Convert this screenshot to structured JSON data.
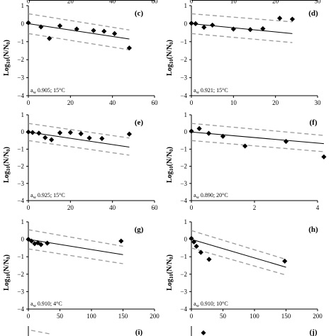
{
  "top_strip_ticks": {
    "left": [
      "0",
      "20",
      "40",
      "60"
    ],
    "right": [
      "0",
      "10",
      "20",
      "30"
    ]
  },
  "y_axis_label": {
    "main": "Log",
    "sub": "10",
    "rest": "(N/N",
    "sub2": "0",
    "close": ")"
  },
  "chart_data": [
    {
      "type": "scatter",
      "panel": "(c)",
      "annotation": "a_w 0.905; 15°C",
      "annotation_parts": {
        "aw": "a",
        "aw_sub": "w",
        "text": " 0.905; 15°C"
      },
      "xlim": [
        0,
        60
      ],
      "ylim": [
        -4,
        1
      ],
      "xticks": [
        0,
        20,
        40,
        60
      ],
      "yticks": [
        1,
        0,
        -1,
        -2,
        -3,
        -4
      ],
      "points": [
        [
          0,
          0.05
        ],
        [
          6,
          -0.18
        ],
        [
          10,
          -0.82
        ],
        [
          15,
          -0.12
        ],
        [
          23,
          -0.3
        ],
        [
          31,
          -0.38
        ],
        [
          36,
          -0.42
        ],
        [
          41,
          -0.55
        ],
        [
          48,
          -1.35
        ]
      ],
      "fit": [
        [
          0,
          0
        ],
        [
          48,
          -0.85
        ]
      ],
      "upper": [
        [
          0,
          0.55
        ],
        [
          48,
          -0.35
        ]
      ],
      "lower": [
        [
          0,
          -0.55
        ],
        [
          48,
          -1.45
        ]
      ]
    },
    {
      "type": "scatter",
      "panel": "(d)",
      "annotation": "a_w 0.921; 15°C",
      "annotation_parts": {
        "aw": "a",
        "aw_sub": "w",
        "text": " 0.921; 15°C"
      },
      "xlim": [
        0,
        30
      ],
      "ylim": [
        -4,
        1
      ],
      "xticks": [
        0,
        10,
        20,
        30
      ],
      "yticks": [
        1,
        0,
        -1,
        -2,
        -3,
        -4
      ],
      "points": [
        [
          0,
          0.02
        ],
        [
          1,
          0
        ],
        [
          3,
          -0.2
        ],
        [
          5,
          -0.08
        ],
        [
          10,
          -0.3
        ],
        [
          14,
          -0.33
        ],
        [
          17,
          -0.28
        ],
        [
          21,
          0.3
        ],
        [
          24,
          0.25
        ]
      ],
      "fit": [
        [
          0,
          0
        ],
        [
          24,
          -0.55
        ]
      ],
      "upper": [
        [
          0,
          0.55
        ],
        [
          24,
          0.1
        ]
      ],
      "lower": [
        [
          0,
          -0.55
        ],
        [
          24,
          -1.05
        ]
      ]
    },
    {
      "type": "scatter",
      "panel": "(e)",
      "annotation": "a_w 0.925; 15°C",
      "annotation_parts": {
        "aw": "a",
        "aw_sub": "w",
        "text": " 0.925; 15°C"
      },
      "xlim": [
        0,
        60
      ],
      "ylim": [
        -4,
        1
      ],
      "xticks": [
        0,
        20,
        40,
        60
      ],
      "yticks": [
        1,
        0,
        -1,
        -2,
        -3,
        -4
      ],
      "points": [
        [
          0,
          0
        ],
        [
          2,
          -0.03
        ],
        [
          5,
          -0.07
        ],
        [
          8,
          -0.33
        ],
        [
          11,
          -0.45
        ],
        [
          15,
          -0.05
        ],
        [
          20,
          -0.03
        ],
        [
          25,
          -0.1
        ],
        [
          29,
          -0.35
        ],
        [
          35,
          -0.38
        ],
        [
          48,
          -0.12
        ]
      ],
      "fit": [
        [
          0,
          0
        ],
        [
          48,
          -0.88
        ]
      ],
      "upper": [
        [
          0,
          0.5
        ],
        [
          48,
          -0.35
        ]
      ],
      "lower": [
        [
          0,
          -0.5
        ],
        [
          48,
          -1.35
        ]
      ]
    },
    {
      "type": "scatter",
      "panel": "(f)",
      "annotation": "a_w 0.890; 20°C",
      "annotation_parts": {
        "aw": "a",
        "aw_sub": "w",
        "text": " 0.890; 20°C"
      },
      "xlim": [
        0,
        4
      ],
      "ylim": [
        -4,
        1
      ],
      "xticks": [
        0,
        2,
        4
      ],
      "yticks": [
        1,
        0,
        -1,
        -2,
        -3,
        -4
      ],
      "points": [
        [
          0,
          0.05
        ],
        [
          0.25,
          0.2
        ],
        [
          0.55,
          -0.08
        ],
        [
          1.0,
          -0.25
        ],
        [
          1.7,
          -0.82
        ],
        [
          3.0,
          -0.55
        ],
        [
          4.2,
          -1.45
        ]
      ],
      "fit": [
        [
          0,
          0
        ],
        [
          4.2,
          -0.68
        ]
      ],
      "upper": [
        [
          0,
          0.5
        ],
        [
          4.2,
          -0.2
        ]
      ],
      "lower": [
        [
          0,
          -0.5
        ],
        [
          4.2,
          -1.15
        ]
      ]
    },
    {
      "type": "scatter",
      "panel": "(g)",
      "annotation": "a_w 0.910; 4°C",
      "annotation_parts": {
        "aw": "a",
        "aw_sub": "w",
        "text": " 0.910; 4°C"
      },
      "xlim": [
        0,
        200
      ],
      "ylim": [
        -4,
        1
      ],
      "xticks": [
        0,
        50,
        100,
        150,
        200
      ],
      "yticks": [
        1,
        0,
        -1,
        -2,
        -3,
        -4
      ],
      "points": [
        [
          0,
          0
        ],
        [
          5,
          -0.1
        ],
        [
          10,
          -0.25
        ],
        [
          15,
          -0.2
        ],
        [
          20,
          -0.3
        ],
        [
          30,
          -0.22
        ],
        [
          147,
          -0.1
        ]
      ],
      "fit": [
        [
          0,
          0
        ],
        [
          150,
          -0.88
        ]
      ],
      "upper": [
        [
          0,
          0.55
        ],
        [
          150,
          -0.4
        ]
      ],
      "lower": [
        [
          0,
          -0.55
        ],
        [
          150,
          -1.4
        ]
      ]
    },
    {
      "type": "scatter",
      "panel": "(h)",
      "annotation": "a_w 0.910; 10°C",
      "annotation_parts": {
        "aw": "a",
        "aw_sub": "w",
        "text": " 0.910; 10°C"
      },
      "xlim": [
        0,
        200
      ],
      "ylim": [
        -4,
        1
      ],
      "xticks": [
        0,
        50,
        100,
        150,
        200
      ],
      "yticks": [
        1,
        0,
        -1,
        -2,
        -3,
        -4
      ],
      "points": [
        [
          0,
          0.05
        ],
        [
          4,
          -0.15
        ],
        [
          8,
          -0.4
        ],
        [
          15,
          -0.75
        ],
        [
          28,
          -1.15
        ],
        [
          148,
          -1.25
        ]
      ],
      "fit": [
        [
          0,
          0
        ],
        [
          150,
          -1.6
        ]
      ],
      "upper": [
        [
          0,
          0.5
        ],
        [
          150,
          -1.15
        ]
      ],
      "lower": [
        [
          0,
          -0.5
        ],
        [
          150,
          -2.05
        ]
      ]
    }
  ],
  "bottom_partial_labels": [
    "(i)",
    "(j)"
  ]
}
